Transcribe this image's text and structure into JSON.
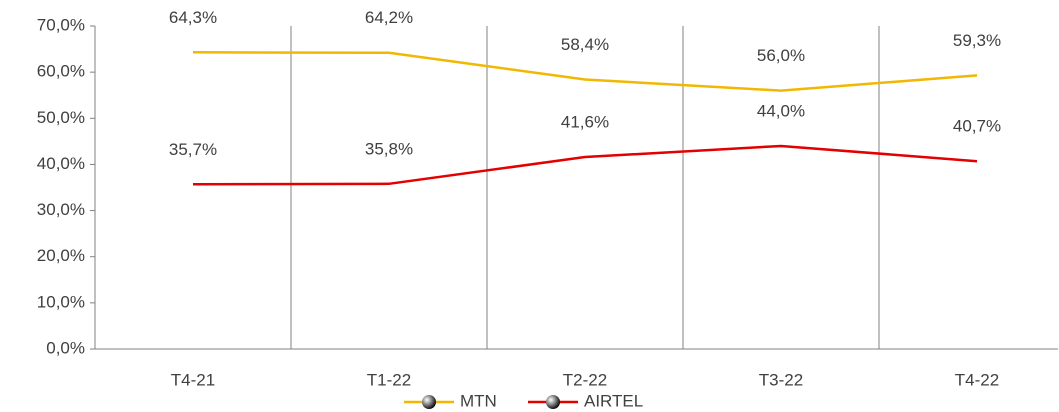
{
  "chart_data": {
    "type": "line",
    "categories": [
      "T4-21",
      "T1-22",
      "T2-22",
      "T3-22",
      "T4-22"
    ],
    "series": [
      {
        "name": "MTN",
        "color": "#f2b700",
        "values": [
          64.3,
          64.2,
          58.4,
          56.0,
          59.3
        ],
        "value_labels": [
          "64,3%",
          "64,2%",
          "58,4%",
          "56,0%",
          "59,3%"
        ]
      },
      {
        "name": "AIRTEL",
        "color": "#e30000",
        "values": [
          35.7,
          35.8,
          41.6,
          44.0,
          40.7
        ],
        "value_labels": [
          "35,7%",
          "35,8%",
          "41,6%",
          "44,0%",
          "40,7%"
        ]
      }
    ],
    "ylim": [
      0,
      70
    ],
    "yticks": [
      {
        "value": 0,
        "label": "0,0%"
      },
      {
        "value": 10,
        "label": "10,0%"
      },
      {
        "value": 20,
        "label": "20,0%"
      },
      {
        "value": 30,
        "label": "30,0%"
      },
      {
        "value": 40,
        "label": "40,0%"
      },
      {
        "value": 50,
        "label": "50,0%"
      },
      {
        "value": 60,
        "label": "60,0%"
      },
      {
        "value": 70,
        "label": "70,0%"
      }
    ],
    "legend": "bottom"
  }
}
